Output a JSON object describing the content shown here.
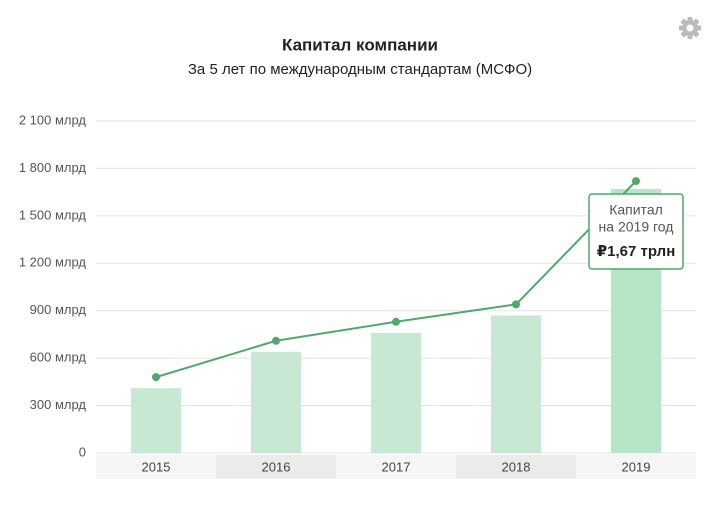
{
  "chart_data": {
    "type": "bar-line",
    "title": "Капитал компании",
    "subtitle": "За 5 лет по международным стандартам (МСФО)",
    "categories": [
      "2015",
      "2016",
      "2017",
      "2018",
      "2019"
    ],
    "series": [
      {
        "name": "Капитал",
        "type": "bar",
        "color": "#c9e8d4",
        "highlight_color": "#b7e6c7",
        "values": [
          410,
          640,
          760,
          870,
          1670
        ],
        "value_labels": [
          null,
          null,
          null,
          null,
          "₽1,67 трлн"
        ]
      },
      {
        "type": "line",
        "color": "#4fa96c",
        "values": [
          480,
          710,
          830,
          940,
          1720
        ]
      }
    ],
    "tooltip_note": "на 2019 год",
    "ylim": [
      0,
      2100
    ],
    "yticks": [
      0,
      {
        "value": 300,
        "label": "300 млрд"
      },
      {
        "value": 600,
        "label": "600 млрд"
      },
      {
        "value": 900,
        "label": "900 млрд"
      },
      {
        "value": 1200,
        "label": "1 200 млрд"
      },
      {
        "value": 1500,
        "label": "1 500 млрд"
      },
      {
        "value": 1800,
        "label": "1 800 млрд"
      },
      {
        "value": 2100,
        "label": "2 100 млрд"
      }
    ],
    "grid": true
  }
}
